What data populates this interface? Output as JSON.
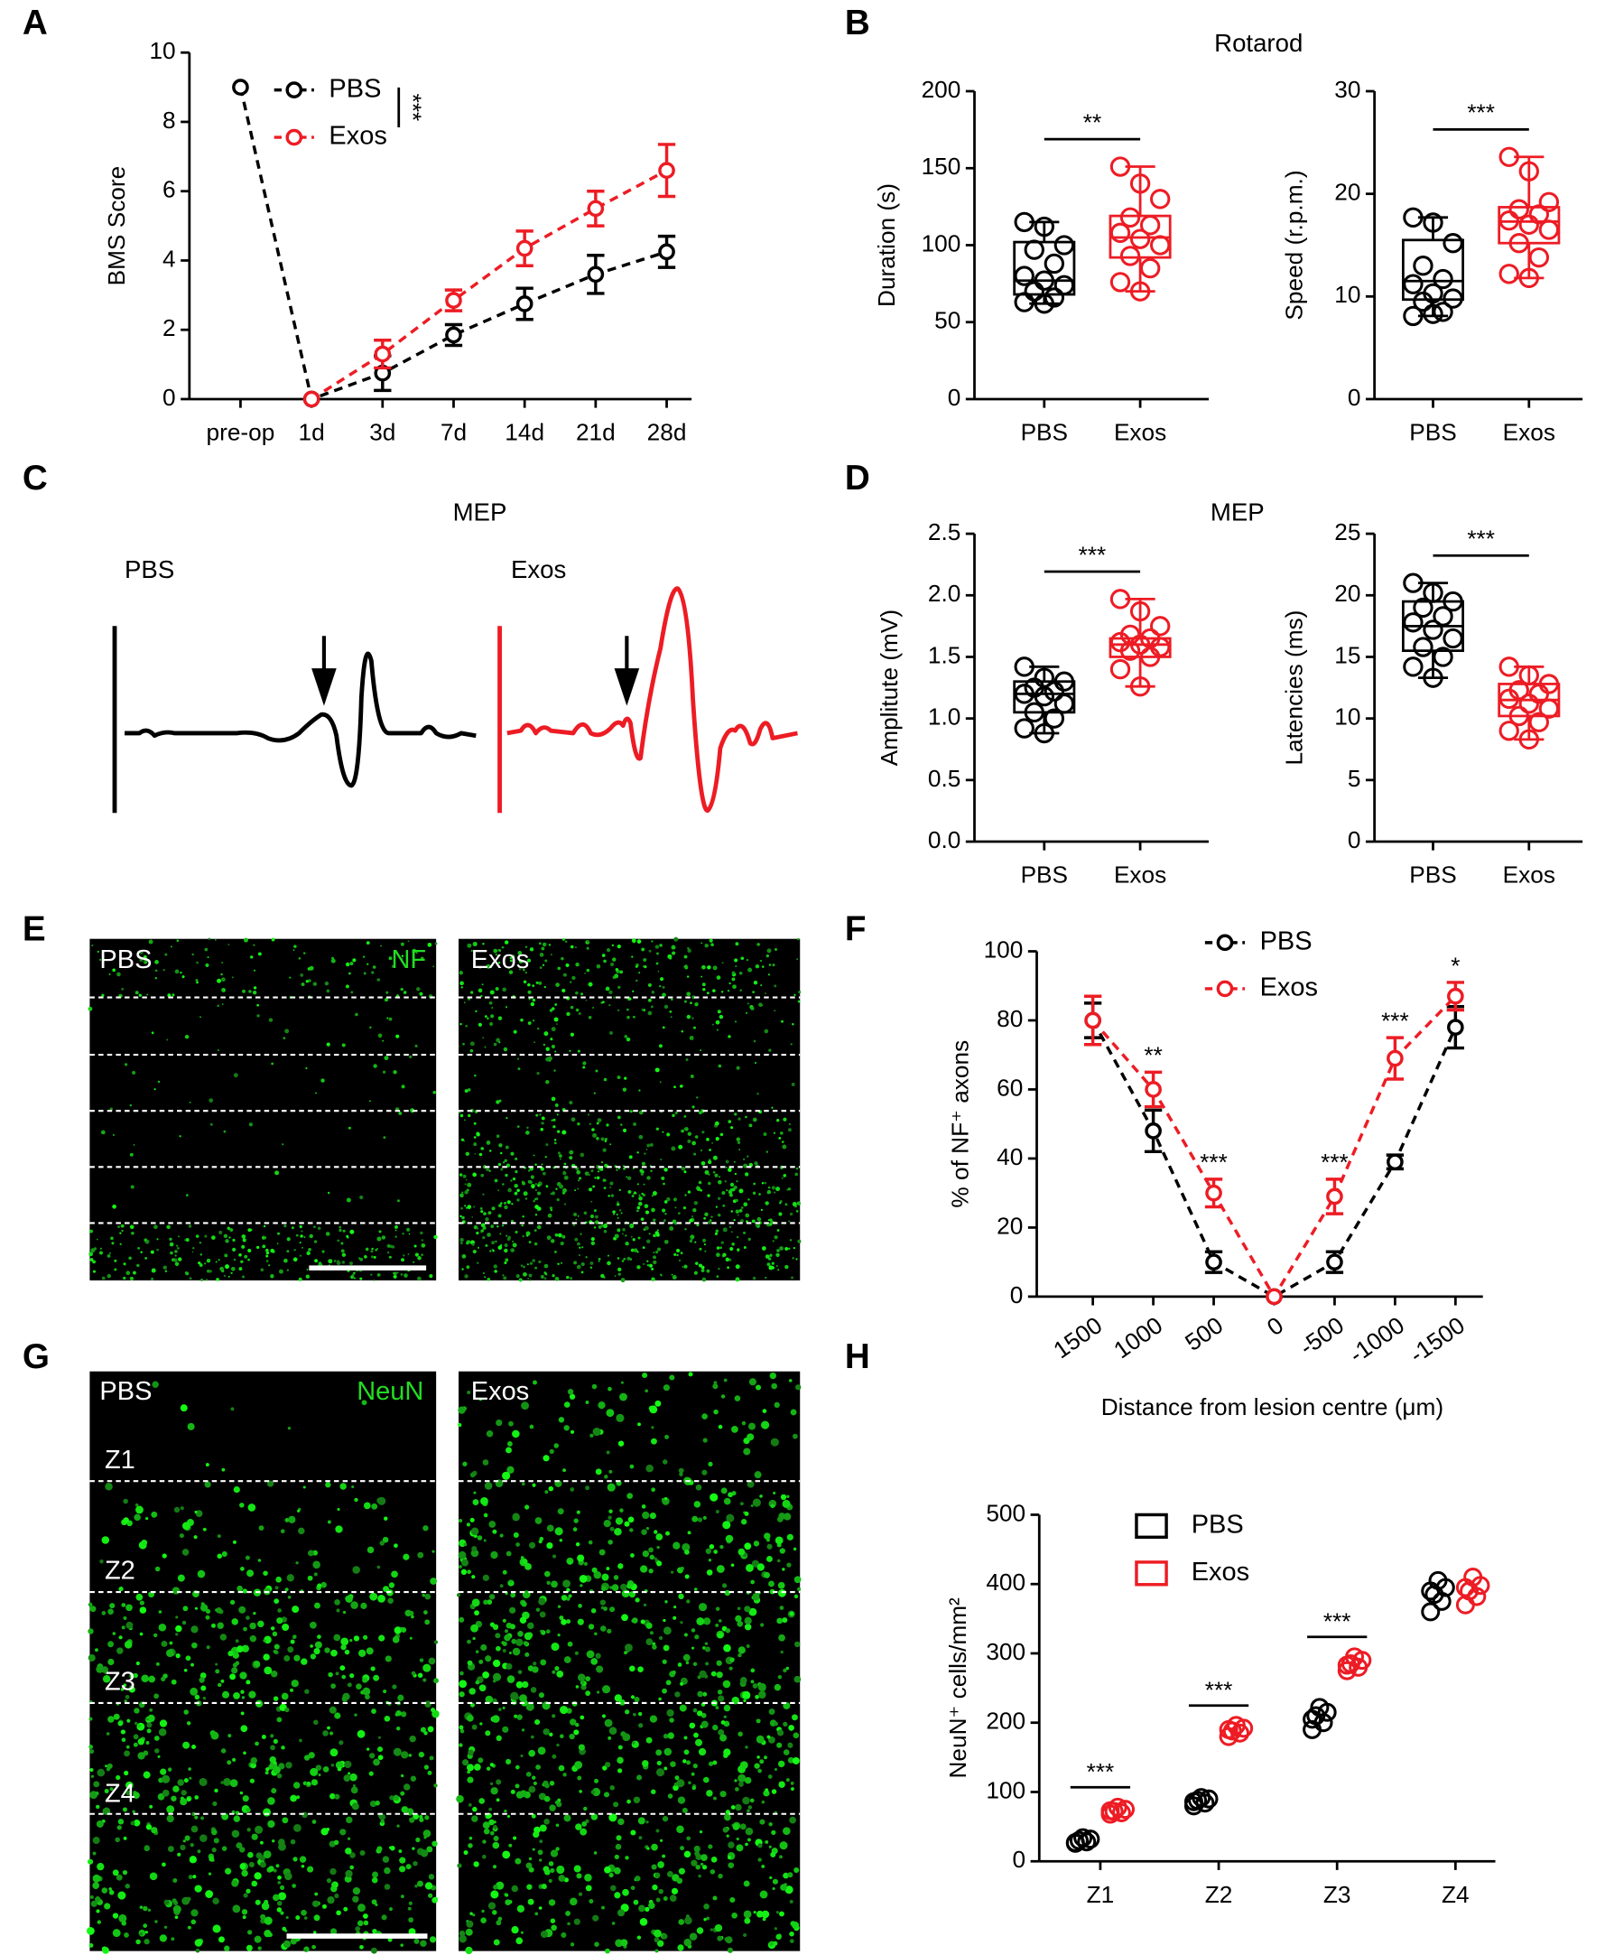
{
  "figure": {
    "panel_labels": [
      "A",
      "B",
      "C",
      "D",
      "E",
      "F",
      "G",
      "H"
    ],
    "mep": {
      "title": "MEP",
      "labels": [
        "PBS",
        "Exos"
      ]
    },
    "nf_images": {
      "labels": [
        "PBS",
        "Exos"
      ],
      "stain": "NF"
    },
    "neun_images": {
      "labels": [
        "PBS",
        "Exos"
      ],
      "stain": "NeuN",
      "zones": [
        "Z1",
        "Z2",
        "Z3",
        "Z4"
      ]
    }
  },
  "chart_data": [
    {
      "type": "line",
      "ylabel": "BMS Score",
      "annotation": "***",
      "categories": [
        "pre-op",
        "1d",
        "3d",
        "7d",
        "14d",
        "21d",
        "28d"
      ],
      "ylim": [
        0,
        10
      ],
      "yticks": [
        0,
        2,
        4,
        6,
        8,
        10
      ],
      "series": [
        {
          "name": "PBS",
          "color": "#000000",
          "values": [
            9,
            0,
            0.75,
            1.85,
            2.75,
            3.6,
            4.25
          ],
          "errors": [
            null,
            null,
            0.5,
            0.3,
            0.45,
            0.55,
            0.45
          ]
        },
        {
          "name": "Exos",
          "color": "#ed1c24",
          "values": [
            null,
            0,
            1.3,
            2.85,
            4.35,
            5.5,
            6.6
          ],
          "errors": [
            null,
            null,
            0.4,
            0.3,
            0.5,
            0.5,
            0.75
          ]
        }
      ]
    },
    {
      "type": "box",
      "title": "Rotarod",
      "ylabel": "Duration (s)",
      "annotation": "**",
      "categories": [
        "PBS",
        "Exos"
      ],
      "ylim": [
        0,
        200
      ],
      "yticks": [
        0,
        50,
        100,
        150,
        200
      ],
      "boxes": [
        {
          "color": "#000000",
          "min": 62,
          "q1": 68,
          "median": 77,
          "q3": 102,
          "max": 115,
          "points": [
            115,
            112,
            100,
            97,
            88,
            80,
            77,
            74,
            70,
            66,
            63,
            62
          ]
        },
        {
          "color": "#ed1c24",
          "min": 70,
          "q1": 92,
          "median": 105,
          "q3": 119,
          "max": 151,
          "points": [
            151,
            140,
            130,
            118,
            113,
            108,
            104,
            100,
            93,
            85,
            76,
            70
          ]
        }
      ]
    },
    {
      "type": "box",
      "ylabel": "Speed (r.p.m.)",
      "annotation": "***",
      "categories": [
        "PBS",
        "Exos"
      ],
      "ylim": [
        0,
        30
      ],
      "yticks": [
        0,
        10,
        20,
        30
      ],
      "boxes": [
        {
          "color": "#000000",
          "min": 8.1,
          "q1": 9.7,
          "median": 11.5,
          "q3": 15.5,
          "max": 17.7,
          "points": [
            17.7,
            17.2,
            15.2,
            13,
            11.7,
            11.2,
            10.3,
            9.8,
            9.5,
            8.5,
            8.1,
            8.3
          ]
        },
        {
          "color": "#ed1c24",
          "min": 11.8,
          "q1": 15.2,
          "median": 17.3,
          "q3": 18.7,
          "max": 23.6,
          "points": [
            23.6,
            22.2,
            19.2,
            18.5,
            18,
            17.4,
            17,
            16.5,
            15.2,
            13.8,
            12.2,
            11.8
          ]
        }
      ]
    },
    {
      "type": "box",
      "title": "MEP",
      "ylabel": "Amplitute (mV)",
      "annotation": "***",
      "categories": [
        "PBS",
        "Exos"
      ],
      "ylim": [
        0,
        2.5
      ],
      "yticks": [
        {
          "value": 0,
          "label": "0.0"
        },
        0.5,
        {
          "value": 1,
          "label": "1.0"
        },
        1.5,
        {
          "value": 2,
          "label": "2.0"
        },
        2.5
      ],
      "boxes": [
        {
          "color": "#000000",
          "min": 0.88,
          "q1": 1.05,
          "median": 1.2,
          "q3": 1.3,
          "max": 1.42,
          "points": [
            1.42,
            1.33,
            1.3,
            1.25,
            1.22,
            1.2,
            1.18,
            1.12,
            1.05,
            1.0,
            0.92,
            0.88
          ]
        },
        {
          "color": "#ed1c24",
          "min": 1.26,
          "q1": 1.5,
          "median": 1.6,
          "q3": 1.65,
          "max": 1.97,
          "points": [
            1.97,
            1.87,
            1.75,
            1.68,
            1.65,
            1.62,
            1.6,
            1.58,
            1.55,
            1.5,
            1.4,
            1.26
          ]
        }
      ]
    },
    {
      "type": "box",
      "ylabel": "Latencies (ms)",
      "annotation": "***",
      "categories": [
        "PBS",
        "Exos"
      ],
      "ylim": [
        0,
        25
      ],
      "yticks": [
        0,
        5,
        10,
        15,
        20,
        25
      ],
      "boxes": [
        {
          "color": "#000000",
          "min": 13.3,
          "q1": 15.5,
          "median": 17.5,
          "q3": 19.5,
          "max": 21,
          "points": [
            21,
            20.2,
            19.5,
            19,
            18.3,
            17.8,
            17.2,
            16.5,
            15.8,
            15,
            14.2,
            13.3
          ]
        },
        {
          "color": "#ed1c24",
          "min": 8.3,
          "q1": 10.2,
          "median": 11.5,
          "q3": 12.8,
          "max": 14.2,
          "points": [
            14.2,
            13.5,
            12.8,
            12.3,
            12,
            11.6,
            11.2,
            10.8,
            10.2,
            9.7,
            9,
            8.3
          ]
        }
      ]
    },
    {
      "type": "line",
      "ylabel": "% of NF⁺ axons",
      "xlabel": "Distance from lesion centre (μm)",
      "categories": [
        "1500",
        "1000",
        "500",
        "0",
        "-500",
        "-1000",
        "-1500"
      ],
      "annotations": [
        null,
        "**",
        "***",
        null,
        "***",
        "***",
        "*"
      ],
      "ylim": [
        0,
        100
      ],
      "yticks": [
        0,
        20,
        40,
        60,
        80,
        100
      ],
      "series": [
        {
          "name": "PBS",
          "color": "#000000",
          "values": [
            80,
            48,
            10,
            0,
            10,
            39,
            78
          ],
          "errors": [
            5,
            6,
            3,
            null,
            3,
            2,
            6
          ]
        },
        {
          "name": "Exos",
          "color": "#ed1c24",
          "values": [
            80,
            60,
            30,
            0,
            29,
            69,
            87
          ],
          "errors": [
            7,
            5,
            4,
            null,
            5,
            6,
            4
          ]
        }
      ]
    },
    {
      "type": "dot",
      "ylabel": "NeuN⁺ cells/mm²",
      "categories": [
        "Z1",
        "Z2",
        "Z3",
        "Z4"
      ],
      "annotations": [
        "***",
        "***",
        "***",
        null
      ],
      "ylim": [
        0,
        500
      ],
      "yticks": [
        0,
        100,
        200,
        300,
        400,
        500
      ],
      "series": [
        {
          "name": "PBS",
          "color": "#000000",
          "values": [
            [
              26,
              28,
              30,
              32,
              34,
              27
            ],
            [
              80,
              84,
              88,
              90,
              92,
              86
            ],
            [
              190,
              200,
              210,
              215,
              222,
              205
            ],
            [
              360,
              375,
              385,
              395,
              405,
              390
            ]
          ]
        },
        {
          "name": "Exos",
          "color": "#ed1c24",
          "values": [
            [
              68,
              70,
              72,
              75,
              78,
              73
            ],
            [
              180,
              185,
              188,
              192,
              196,
              190
            ],
            [
              275,
              280,
              285,
              290,
              295,
              283
            ],
            [
              370,
              382,
              390,
              398,
              410,
              395
            ]
          ]
        }
      ]
    }
  ]
}
